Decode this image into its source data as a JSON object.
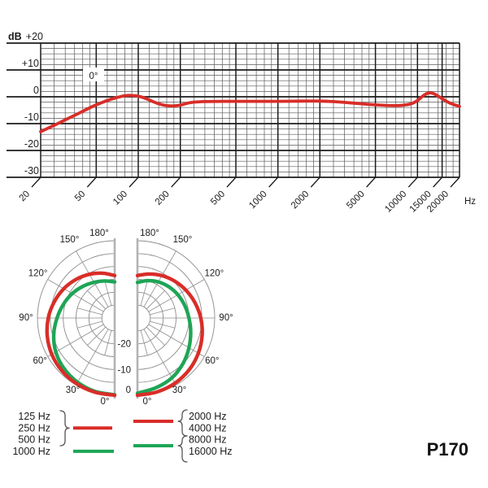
{
  "product": {
    "model": "P170"
  },
  "colors": {
    "red": "#d92d28",
    "green": "#1ea556",
    "grid_major": "#1b1b1b",
    "grid_minor": "#5a5a5a",
    "polar_grid": "#8d8d8d",
    "polar_axis": "#b3b3b3",
    "text": "#1c1c1c"
  },
  "legend": {
    "left": {
      "red": [
        "125 Hz",
        "250 Hz",
        "500 Hz"
      ],
      "green": [
        "1000 Hz"
      ]
    },
    "right": {
      "red": [
        "2000 Hz",
        "4000 Hz"
      ],
      "green": [
        "8000 Hz",
        "16000 Hz"
      ]
    }
  },
  "chart_data": [
    {
      "type": "line",
      "title": "Frequency response",
      "curve_label": "0°",
      "x_unit": "Hz",
      "y_unit": "dB",
      "x_scale": "log",
      "xlim": [
        20,
        20000
      ],
      "ylim": [
        -30,
        20
      ],
      "y_tick_labels": [
        {
          "text": "+20",
          "db": 20
        },
        {
          "text": "+10",
          "db": 10
        },
        {
          "text": "0",
          "db": 0
        },
        {
          "text": "-10",
          "db": -10
        },
        {
          "text": "-20",
          "db": -20
        },
        {
          "text": "-30",
          "db": -30
        }
      ],
      "y_minor_step_db": 2,
      "x_ticks": [
        {
          "text": "20",
          "hz": 20
        },
        {
          "text": "50",
          "hz": 50
        },
        {
          "text": "100",
          "hz": 100
        },
        {
          "text": "200",
          "hz": 200
        },
        {
          "text": "500",
          "hz": 500
        },
        {
          "text": "1000",
          "hz": 1000
        },
        {
          "text": "2000",
          "hz": 2000
        },
        {
          "text": "5000",
          "hz": 5000
        },
        {
          "text": "10000",
          "hz": 10000
        },
        {
          "text": "15000",
          "hz": 15000
        },
        {
          "text": "20000",
          "hz": 20000
        }
      ],
      "x_minor_hz": [
        25,
        30,
        35,
        40,
        45,
        60,
        70,
        80,
        90,
        120,
        140,
        160,
        180,
        250,
        300,
        350,
        400,
        450,
        600,
        700,
        800,
        900,
        1200,
        1400,
        1600,
        1800,
        2500,
        3000,
        3500,
        4000,
        4500,
        6000,
        7000,
        8000,
        9000,
        12000,
        14000,
        16000,
        18000
      ],
      "series": [
        {
          "name": "0°",
          "color_key": "red",
          "x_hz": [
            20,
            25,
            30,
            35,
            40,
            45,
            50,
            60,
            70,
            80,
            90,
            100,
            110,
            120,
            140,
            160,
            180,
            200,
            225,
            250,
            300,
            400,
            500,
            700,
            1000,
            1500,
            2000,
            2500,
            3000,
            4000,
            5000,
            6000,
            7000,
            8000,
            9000,
            10000,
            11000,
            12000,
            13000,
            14000,
            15000,
            17000,
            20000
          ],
          "y_db": [
            -13,
            -10.6,
            -8.6,
            -6.9,
            -5.4,
            -4.1,
            -3,
            -1.4,
            -0.3,
            0.4,
            0.5,
            0.2,
            -0.4,
            -1.2,
            -2.6,
            -3.3,
            -3.4,
            -3.1,
            -2.4,
            -2,
            -1.8,
            -1.7,
            -1.7,
            -1.7,
            -1.7,
            -1.6,
            -1.6,
            -1.8,
            -2.1,
            -2.6,
            -3,
            -3.2,
            -3.3,
            -3.1,
            -2.6,
            -1.4,
            0.4,
            1.4,
            1.2,
            0.3,
            -0.7,
            -2.3,
            -3.6
          ]
        }
      ]
    },
    {
      "type": "polar",
      "title": "Polar pattern",
      "zero_angle_position": "bottom",
      "ring_db": [
        0,
        -5,
        -10,
        -15,
        -20,
        -25
      ],
      "ring_labels": [
        {
          "text": "0",
          "db": 0
        },
        {
          "text": "-10",
          "db": -10
        },
        {
          "text": "-20",
          "db": -20
        }
      ],
      "angle_labels": [
        {
          "text": "0°",
          "deg": 0
        },
        {
          "text": "30°",
          "deg": 30
        },
        {
          "text": "60°",
          "deg": 60
        },
        {
          "text": "90°",
          "deg": 90
        },
        {
          "text": "120°",
          "deg": 120
        },
        {
          "text": "150°",
          "deg": 150
        },
        {
          "text": "180°",
          "deg": 180
        }
      ],
      "angles_deg": [
        0,
        15,
        30,
        45,
        60,
        75,
        90,
        105,
        120,
        135,
        150,
        165,
        180
      ],
      "halves": {
        "left": [
          {
            "name": "125-500 Hz",
            "color_key": "green_under",
            "db": []
          },
          {
            "name": "1000 Hz",
            "color_key": "green",
            "db": [
              -0.2,
              -0.5,
              -1.2,
              -2.2,
              -3.6,
              -5.5,
              -7.6,
              -9.4,
              -11.0,
              -12.6,
              -14.0,
              -15.1,
              -16.0
            ]
          },
          {
            "name": "125-500 Hz",
            "color_key": "red",
            "db": [
              0,
              -0.2,
              -0.5,
              -1.0,
              -1.8,
              -2.9,
              -4.2,
              -5.7,
              -7.2,
              -8.8,
              -10.4,
              -12.0,
              -13.5
            ]
          }
        ],
        "right": [
          {
            "name": "8000-16000 Hz",
            "color_key": "green",
            "db": [
              -0.8,
              -2.0,
              -3.2,
              -5.0,
              -6.9,
              -8.6,
              -10.0,
              -11.0,
              -11.9,
              -12.8,
              -13.8,
              -15.0,
              -16.2
            ]
          },
          {
            "name": "2000-4000 Hz",
            "color_key": "red",
            "db": [
              0,
              -0.3,
              -0.8,
              -1.6,
              -2.7,
              -4.0,
              -5.4,
              -6.9,
              -8.3,
              -9.7,
              -11.0,
              -12.3,
              -13.5
            ]
          }
        ]
      }
    }
  ]
}
